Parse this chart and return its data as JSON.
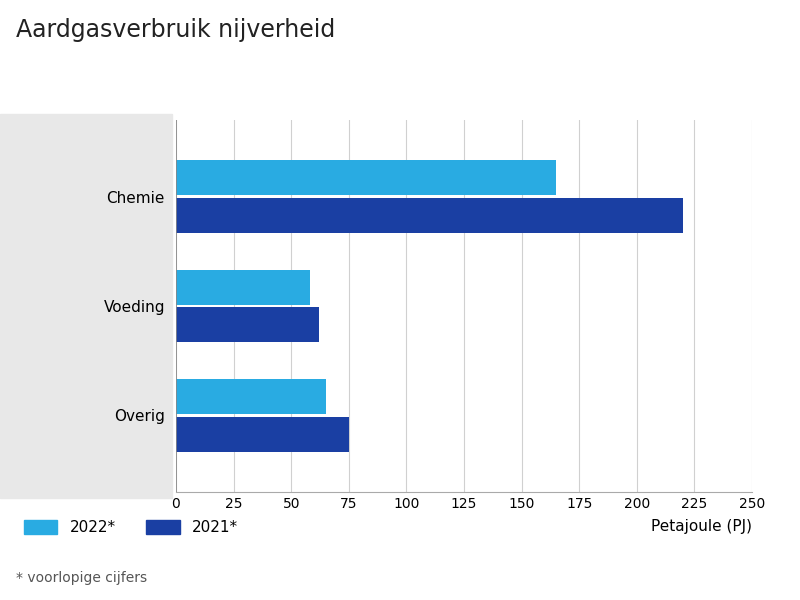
{
  "title": "Aardgasverbruik nijverheid",
  "categories": [
    "Overig",
    "Voeding",
    "Chemie"
  ],
  "values_2022": [
    65,
    58,
    165
  ],
  "values_2021": [
    75,
    62,
    220
  ],
  "color_2022": "#29ABE2",
  "color_2021": "#1A3FA3",
  "xlabel": "Petajoule (PJ)",
  "xlim": [
    0,
    250
  ],
  "xticks": [
    0,
    25,
    50,
    75,
    100,
    125,
    150,
    175,
    200,
    225,
    250
  ],
  "legend_labels": [
    "2022*",
    "2021*"
  ],
  "footnote": "* voorlopige cijfers",
  "title_fontsize": 17,
  "label_fontsize": 11,
  "tick_fontsize": 10,
  "legend_fontsize": 11,
  "footnote_fontsize": 10,
  "bar_height": 0.32,
  "background_color": "#ffffff",
  "left_panel_color": "#e8e8e8",
  "grid_color": "#d0d0d0"
}
